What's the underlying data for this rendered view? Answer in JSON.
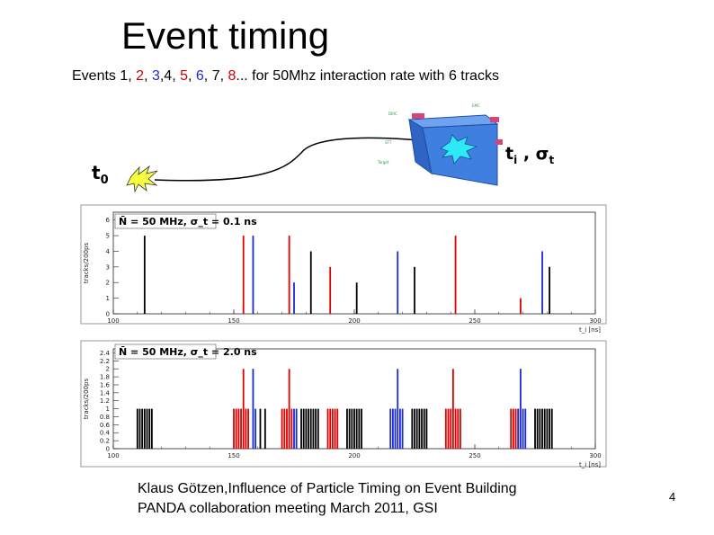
{
  "slide": {
    "title": "Event timing",
    "subtitle_parts": [
      {
        "text": "Events 1, ",
        "color": "#000000"
      },
      {
        "text": "2",
        "color": "#d00000"
      },
      {
        "text": ", ",
        "color": "#000000"
      },
      {
        "text": "3",
        "color": "#1a2bd6"
      },
      {
        "text": ",4, ",
        "color": "#000000"
      },
      {
        "text": "5",
        "color": "#d00000"
      },
      {
        "text": ", ",
        "color": "#000000"
      },
      {
        "text": "6",
        "color": "#1a2bd6"
      },
      {
        "text": ", 7, ",
        "color": "#000000"
      },
      {
        "text": "8",
        "color": "#d00000"
      },
      {
        "text": "... for 50Mhz interaction rate with 6 tracks",
        "color": "#000000"
      }
    ],
    "t0_label": "t",
    "t0_sub": "0",
    "ti_label": "t",
    "ti_sub": "i",
    "ti_sep": " , σ",
    "ti_sub2": "t",
    "footer_line1": "Klaus Götzen,Influence of Particle Timing on Event Building",
    "footer_line2": "PANDA collaboration meeting March 2011, GSI",
    "page_number": "4"
  },
  "colors": {
    "red": "#e00000",
    "blue": "#1a2bd6",
    "black": "#000000",
    "detector": "#3f7fe0"
  },
  "chart_data": [
    {
      "type": "bar",
      "label": "N̄ = 50 MHz, σ_t = 0.1 ns",
      "ylabel": "tracks/200ps",
      "xlabel": "t_i [ns]",
      "xlim": [
        100,
        300
      ],
      "ylim": [
        0,
        6.5
      ],
      "x_ticks": [
        "100",
        "150",
        "200",
        "250",
        "300"
      ],
      "y_ticks": [
        "0",
        "1",
        "2",
        "3",
        "4",
        "5",
        "6"
      ],
      "series": [
        {
          "color": "black",
          "x": [
            113,
            182,
            201,
            225,
            281
          ],
          "values": [
            5,
            4,
            2,
            3,
            3
          ]
        },
        {
          "color": "red",
          "x": [
            154,
            173,
            190,
            242,
            269
          ],
          "values": [
            5,
            5,
            3,
            5,
            1
          ]
        },
        {
          "color": "blue",
          "x": [
            158,
            175,
            218,
            278
          ],
          "values": [
            5,
            2,
            4,
            4
          ]
        }
      ]
    },
    {
      "type": "bar",
      "label": "N̄ = 50 MHz, σ_t = 2.0 ns",
      "ylabel": "tracks/200ps",
      "xlabel": "t_i [ns]",
      "xlim": [
        100,
        300
      ],
      "ylim": [
        0,
        2.5
      ],
      "x_ticks": [
        "100",
        "150",
        "200",
        "250",
        "300"
      ],
      "y_ticks": [
        "0",
        "0.2",
        "0.4",
        "0.6",
        "0.8",
        "1",
        "1.2",
        "1.4",
        "1.6",
        "1.8",
        "2",
        "2.2",
        "2.4"
      ],
      "series": [
        {
          "color": "black",
          "x": [
            110,
            111,
            112,
            113,
            114,
            115,
            116,
            161,
            163,
            178,
            179,
            180,
            181,
            182,
            183,
            184,
            185,
            197,
            198,
            199,
            200,
            201,
            202,
            203,
            224,
            225,
            226,
            227,
            228,
            229,
            230,
            275,
            276,
            277,
            278,
            279,
            280,
            281,
            282
          ],
          "values": [
            1,
            1,
            1,
            1,
            1,
            1,
            1,
            1,
            1,
            1,
            1,
            1,
            1,
            1,
            1,
            1,
            1,
            1,
            1,
            1,
            1,
            1,
            1,
            1,
            1,
            1,
            1,
            1,
            1,
            1,
            1,
            1,
            1,
            1,
            1,
            1,
            1,
            1,
            1
          ]
        },
        {
          "color": "red",
          "x": [
            150,
            151,
            152,
            153,
            154,
            155,
            156,
            170,
            171,
            172,
            173,
            174,
            189,
            190,
            191,
            192,
            193,
            238,
            239,
            240,
            241,
            242,
            243,
            244,
            265,
            266,
            267,
            268
          ],
          "values": [
            1,
            1,
            1,
            1,
            2,
            1,
            1,
            1,
            1,
            1,
            2,
            1,
            1,
            1,
            1,
            1,
            1,
            1,
            1,
            1,
            2,
            1,
            1,
            1,
            1,
            1,
            1,
            1
          ]
        },
        {
          "color": "blue",
          "x": [
            158,
            159,
            175,
            176,
            215,
            216,
            217,
            218,
            219,
            220,
            268,
            269,
            270,
            271
          ],
          "values": [
            2,
            1,
            1,
            1,
            1,
            1,
            1,
            2,
            1,
            1,
            1,
            2,
            1,
            1
          ]
        }
      ]
    }
  ]
}
